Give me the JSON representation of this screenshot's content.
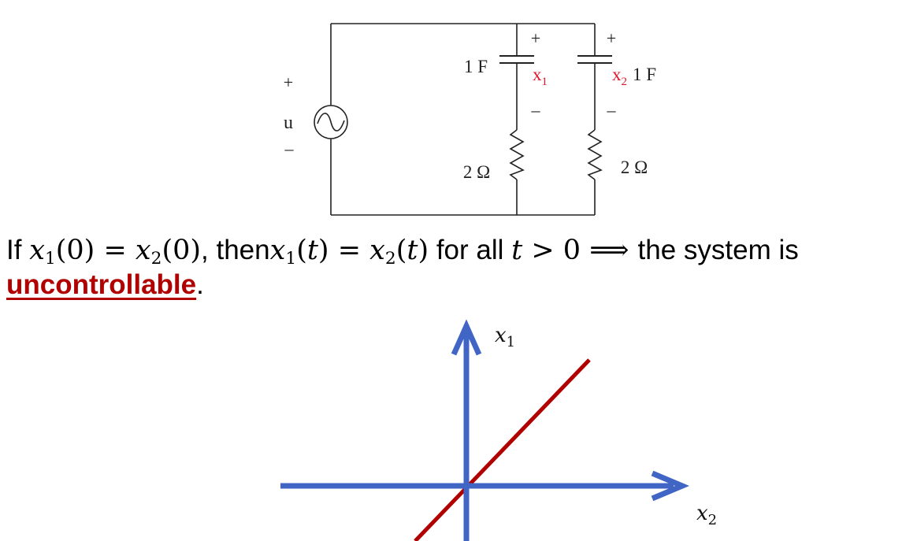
{
  "circuit": {
    "source_plus": "+",
    "source_label": "u",
    "source_minus": "–",
    "cap1_label": "1 F",
    "cap2_label": "1 F",
    "cap1_plus": "+",
    "cap1_minus": "–",
    "cap2_plus": "+",
    "cap2_minus": "–",
    "state1_label": "x",
    "state1_sub": "1",
    "state2_label": "x",
    "state2_sub": "2",
    "res1_label": "2 Ω",
    "res2_label": "2 Ω",
    "colors": {
      "wire": "#222222",
      "state_label": "#e0142b"
    }
  },
  "statement": {
    "if_text": "If ",
    "x": "x",
    "sub1": "1",
    "sub2": "2",
    "eq_left_arg": "(0) = ",
    "eq_right_arg": "(0)",
    "then_text": ", then",
    "t_arg": "(",
    "t": "t",
    "t_close": ")",
    "equals": " = ",
    "for_all": " for all ",
    "gt_zero": " > 0 ⟹ ",
    "conclusion_prefix": "the system is",
    "conclusion_word": "uncontrollable",
    "period": "."
  },
  "phase_plot": {
    "y_axis_label": "x",
    "y_axis_sub": "1",
    "x_axis_label": "x",
    "x_axis_sub": "2",
    "colors": {
      "axes": "#4065c4",
      "line": "#b00000"
    }
  }
}
